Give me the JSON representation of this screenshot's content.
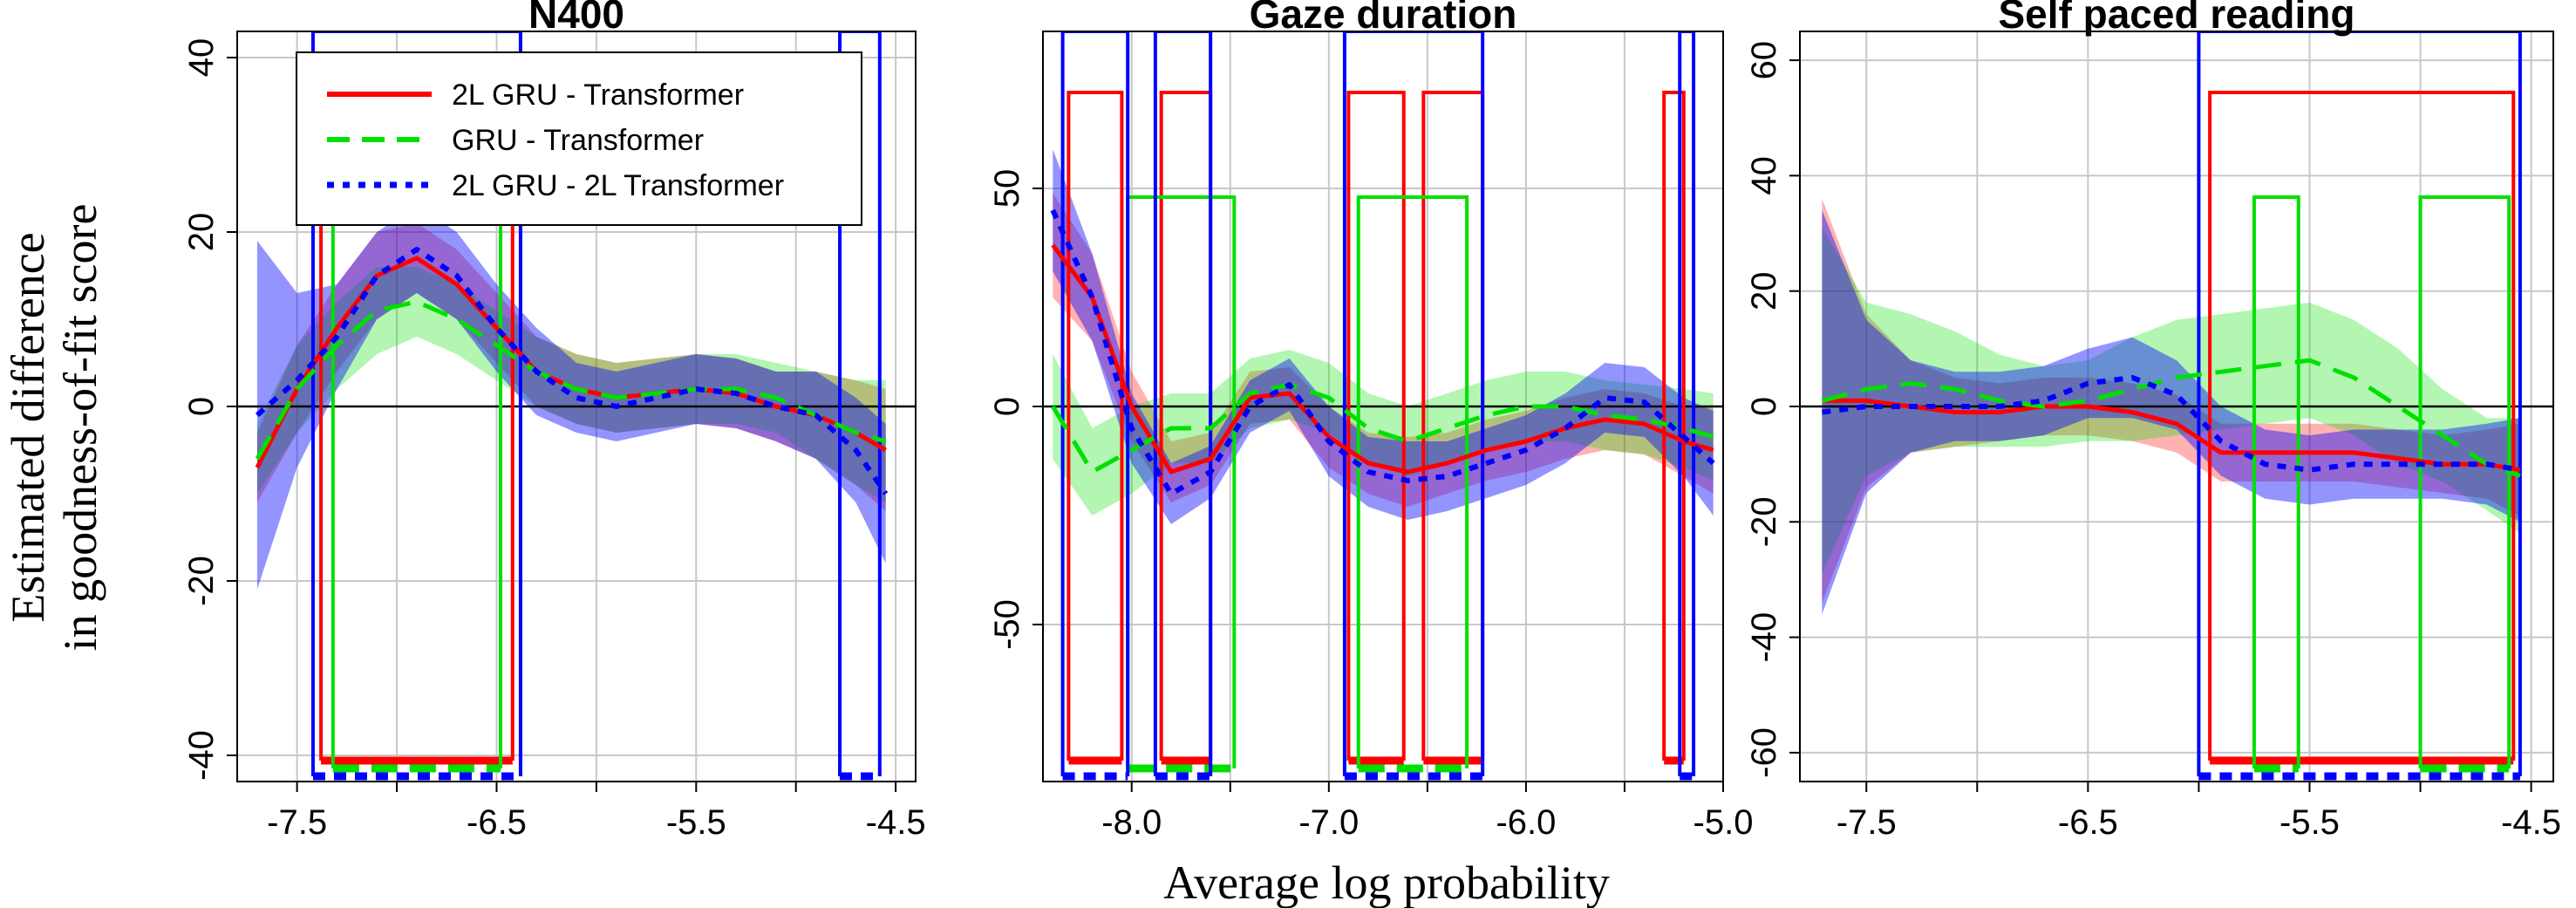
{
  "figure": {
    "ylabel_line1": "Estimated difference",
    "ylabel_line2": "in goodness-of-fit score",
    "xlabel": "Average log probability"
  },
  "legend": {
    "placement": "top-left of first panel",
    "entries": [
      {
        "label": "2L GRU - Transformer",
        "color": "#ff0000",
        "style": "solid"
      },
      {
        "label": "GRU - Transformer",
        "color": "#00e000",
        "style": "dashed"
      },
      {
        "label": "2L GRU - 2L Transformer",
        "color": "#0000ff",
        "style": "dotted"
      }
    ]
  },
  "colors": {
    "red": "#ff0000",
    "green": "#00e000",
    "blue": "#0000ff",
    "ci_overlap": "#4a5f96"
  },
  "chart_data": [
    {
      "type": "line",
      "title": "N400",
      "xlim": [
        -7.8,
        -4.4
      ],
      "ylim": [
        -43,
        43
      ],
      "xticks": [
        -7.5,
        -6.5,
        -5.5,
        -4.5
      ],
      "xtick_labels": [
        "-7.5",
        "-6.5",
        "-5.5",
        "-4.5"
      ],
      "xticks_minor": [
        -7.0,
        -6.0,
        -5.0
      ],
      "yticks": [
        -40,
        -20,
        0,
        20,
        40
      ],
      "ytick_labels": [
        "-40",
        "-20",
        "0",
        "20",
        "40"
      ],
      "grid": true,
      "series": [
        {
          "name": "2L GRU - Transformer",
          "color": "#ff0000",
          "x": [
            -7.7,
            -7.5,
            -7.3,
            -7.1,
            -6.9,
            -6.7,
            -6.5,
            -6.3,
            -6.1,
            -5.9,
            -5.7,
            -5.5,
            -5.3,
            -5.1,
            -4.9,
            -4.7,
            -4.55
          ],
          "y": [
            -7,
            2,
            9,
            15,
            17,
            14,
            9,
            4,
            2,
            1,
            1.5,
            2,
            1.5,
            0,
            -1,
            -3,
            -5
          ],
          "ci": [
            4,
            5,
            5,
            5,
            4,
            4,
            4,
            4,
            4,
            4,
            4,
            4,
            4,
            4,
            5,
            6,
            7
          ],
          "significant_ranges": [
            [
              -7.38,
              -6.42
            ]
          ]
        },
        {
          "name": "GRU - Transformer",
          "color": "#00e000",
          "x": [
            -7.7,
            -7.5,
            -7.3,
            -7.1,
            -6.9,
            -6.7,
            -6.5,
            -6.3,
            -6.1,
            -5.9,
            -5.7,
            -5.5,
            -5.3,
            -5.1,
            -4.9,
            -4.7,
            -4.55
          ],
          "y": [
            -6,
            2,
            7,
            11,
            12,
            10,
            7,
            4,
            2,
            1,
            1.5,
            2,
            2,
            1,
            -1,
            -3,
            -4
          ],
          "ci": [
            4,
            5,
            5,
            5,
            4,
            4,
            4,
            4,
            4,
            4,
            4,
            4,
            4,
            4,
            5,
            6,
            7
          ],
          "significant_ranges": [
            [
              -7.32,
              -6.48
            ]
          ]
        },
        {
          "name": "2L GRU - 2L Transformer",
          "color": "#0000ff",
          "x": [
            -7.7,
            -7.5,
            -7.3,
            -7.1,
            -6.9,
            -6.7,
            -6.5,
            -6.3,
            -6.1,
            -5.9,
            -5.7,
            -5.5,
            -5.3,
            -5.1,
            -4.9,
            -4.7,
            -4.55
          ],
          "y": [
            -1,
            3,
            8,
            15,
            18,
            15,
            9,
            4,
            1,
            0,
            1,
            2,
            1.5,
            0,
            -1,
            -5,
            -10
          ],
          "ci": [
            20,
            10,
            6,
            5,
            5,
            5,
            5,
            5,
            4,
            4,
            4,
            4,
            4,
            4,
            5,
            6,
            8
          ],
          "significant_ranges": [
            [
              -7.42,
              -6.38
            ],
            [
              -4.78,
              -4.58
            ]
          ]
        }
      ]
    },
    {
      "type": "line",
      "title": "Gaze duration",
      "xlim": [
        -8.45,
        -5.0
      ],
      "ylim": [
        -86,
        86
      ],
      "xticks": [
        -8.0,
        -7.0,
        -6.0,
        -5.0
      ],
      "xtick_labels": [
        "-8.0",
        "-7.0",
        "-6.0",
        "-5.0"
      ],
      "xticks_minor": [
        -7.5,
        -6.5,
        -5.5
      ],
      "yticks": [
        -50,
        0,
        50
      ],
      "ytick_labels": [
        "-50",
        "0",
        "50"
      ],
      "grid": true,
      "series": [
        {
          "name": "2L GRU - Transformer",
          "color": "#ff0000",
          "x": [
            -8.4,
            -8.2,
            -8.0,
            -7.8,
            -7.6,
            -7.4,
            -7.2,
            -7.0,
            -6.8,
            -6.6,
            -6.4,
            -6.2,
            -6.0,
            -5.8,
            -5.6,
            -5.4,
            -5.2,
            -5.05
          ],
          "y": [
            37,
            25,
            0,
            -15,
            -12,
            2,
            3,
            -7,
            -13,
            -15,
            -13,
            -10,
            -8,
            -5,
            -3,
            -4,
            -8,
            -10
          ],
          "ci": [
            12,
            10,
            8,
            7,
            6,
            6,
            6,
            7,
            7,
            8,
            7,
            7,
            7,
            7,
            7,
            7,
            8,
            10
          ],
          "significant_ranges": [
            [
              -8.32,
              -8.05
            ],
            [
              -7.85,
              -7.6
            ],
            [
              -6.9,
              -6.62
            ],
            [
              -6.52,
              -6.22
            ],
            [
              -5.3,
              -5.2
            ]
          ]
        },
        {
          "name": "GRU - Transformer",
          "color": "#00e000",
          "x": [
            -8.4,
            -8.2,
            -8.0,
            -7.8,
            -7.6,
            -7.4,
            -7.2,
            -7.0,
            -6.8,
            -6.6,
            -6.4,
            -6.2,
            -6.0,
            -5.8,
            -5.6,
            -5.4,
            -5.2,
            -5.05
          ],
          "y": [
            0,
            -15,
            -10,
            -5,
            -5,
            3,
            5,
            2,
            -5,
            -8,
            -5,
            -2,
            0,
            0,
            -2,
            -3,
            -5,
            -7
          ],
          "ci": [
            12,
            10,
            10,
            8,
            8,
            8,
            8,
            8,
            8,
            8,
            8,
            8,
            8,
            8,
            8,
            8,
            9,
            10
          ],
          "significant_ranges": [
            [
              -8.02,
              -7.48
            ],
            [
              -6.85,
              -6.3
            ]
          ]
        },
        {
          "name": "2L GRU - 2L Transformer",
          "color": "#0000ff",
          "x": [
            -8.4,
            -8.2,
            -8.0,
            -7.8,
            -7.6,
            -7.4,
            -7.2,
            -7.0,
            -6.8,
            -6.6,
            -6.4,
            -6.2,
            -6.0,
            -5.8,
            -5.6,
            -5.4,
            -5.2,
            -5.05
          ],
          "y": [
            45,
            25,
            -5,
            -20,
            -15,
            0,
            5,
            -8,
            -15,
            -17,
            -16,
            -13,
            -10,
            -5,
            2,
            1,
            -7,
            -13
          ],
          "ci": [
            14,
            10,
            8,
            7,
            6,
            6,
            6,
            8,
            8,
            9,
            8,
            8,
            8,
            8,
            8,
            8,
            9,
            12
          ],
          "significant_ranges": [
            [
              -8.35,
              -8.02
            ],
            [
              -7.88,
              -7.6
            ],
            [
              -6.92,
              -6.22
            ],
            [
              -5.22,
              -5.15
            ]
          ]
        }
      ]
    },
    {
      "type": "line",
      "title": "Self paced reading",
      "xlim": [
        -7.8,
        -4.4
      ],
      "ylim": [
        -65,
        65
      ],
      "xticks": [
        -7.5,
        -6.5,
        -5.5,
        -4.5
      ],
      "xtick_labels": [
        "-7.5",
        "-6.5",
        "-5.5",
        "-4.5"
      ],
      "xticks_minor": [
        -7.0,
        -6.0,
        -5.0
      ],
      "yticks": [
        -60,
        -40,
        -20,
        0,
        20,
        40,
        60
      ],
      "ytick_labels": [
        "-60",
        "-40",
        "-20",
        "0",
        "20",
        "40",
        "60"
      ],
      "grid": true,
      "series": [
        {
          "name": "2L GRU - Transformer",
          "color": "#ff0000",
          "x": [
            -7.7,
            -7.5,
            -7.3,
            -7.1,
            -6.9,
            -6.7,
            -6.5,
            -6.3,
            -6.1,
            -5.9,
            -5.7,
            -5.5,
            -5.3,
            -5.1,
            -4.9,
            -4.7,
            -4.55
          ],
          "y": [
            1,
            1,
            0,
            -1,
            -1,
            0,
            0,
            -1,
            -3,
            -8,
            -8,
            -8,
            -8,
            -9,
            -10,
            -10,
            -11
          ],
          "ci": [
            35,
            15,
            8,
            6,
            5,
            5,
            5,
            5,
            5,
            5,
            5,
            5,
            5,
            5,
            5,
            6,
            8
          ],
          "significant_ranges": [
            [
              -5.95,
              -4.58
            ]
          ]
        },
        {
          "name": "GRU - Transformer",
          "color": "#00e000",
          "x": [
            -7.7,
            -7.5,
            -7.3,
            -7.1,
            -6.9,
            -6.7,
            -6.5,
            -6.3,
            -6.1,
            -5.9,
            -5.7,
            -5.5,
            -5.3,
            -5.1,
            -4.9,
            -4.7,
            -4.55
          ],
          "y": [
            1,
            3,
            4,
            3,
            1,
            0,
            1,
            3,
            5,
            6,
            7,
            8,
            5,
            0,
            -5,
            -10,
            -12
          ],
          "ci": [
            30,
            15,
            12,
            10,
            8,
            7,
            7,
            9,
            10,
            10,
            10,
            10,
            10,
            10,
            8,
            8,
            10
          ],
          "significant_ranges": [
            [
              -5.75,
              -5.55
            ],
            [
              -5.0,
              -4.6
            ]
          ]
        },
        {
          "name": "2L GRU - 2L Transformer",
          "color": "#0000ff",
          "x": [
            -7.7,
            -7.5,
            -7.3,
            -7.1,
            -6.9,
            -6.7,
            -6.5,
            -6.3,
            -6.1,
            -5.9,
            -5.7,
            -5.5,
            -5.3,
            -5.1,
            -4.9,
            -4.7,
            -4.55
          ],
          "y": [
            -1,
            0,
            0,
            0,
            0,
            1,
            4,
            5,
            2,
            -6,
            -10,
            -11,
            -10,
            -10,
            -10,
            -10,
            -11
          ],
          "ci": [
            35,
            15,
            8,
            6,
            6,
            6,
            6,
            7,
            6,
            6,
            6,
            6,
            6,
            6,
            6,
            7,
            9
          ],
          "significant_ranges": [
            [
              -6.0,
              -4.55
            ]
          ]
        }
      ]
    }
  ]
}
